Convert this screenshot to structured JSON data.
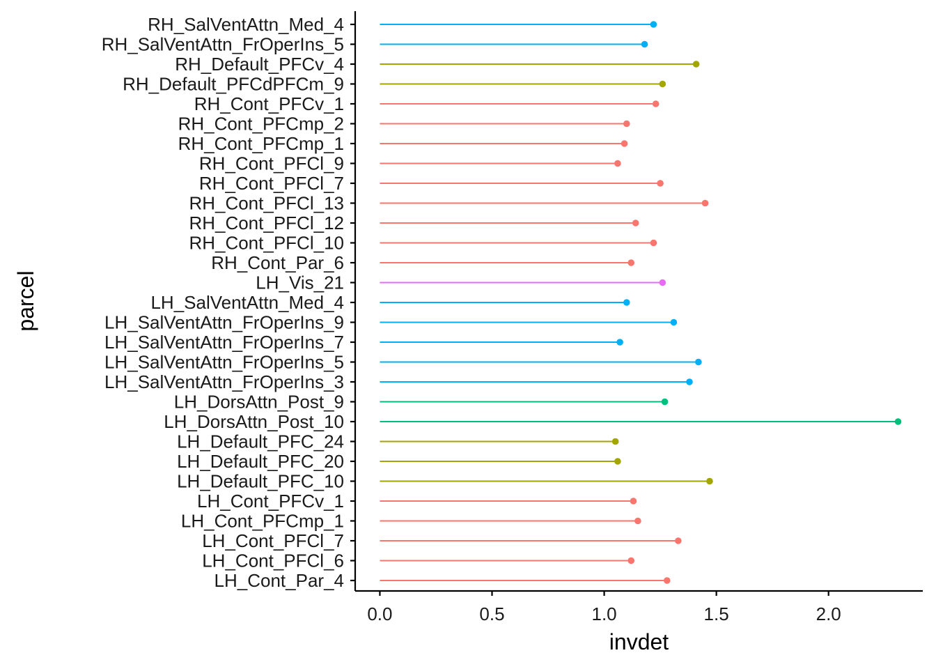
{
  "chart_data": {
    "type": "lollipop",
    "orientation": "horizontal",
    "xlabel": "invdet",
    "ylabel": "parcel",
    "xlim": [
      -0.11,
      2.42
    ],
    "xticks": [
      0.0,
      0.5,
      1.0,
      1.5,
      2.0
    ],
    "xtick_labels": [
      "0.0",
      "0.5",
      "1.0",
      "1.5",
      "2.0"
    ],
    "grid": false,
    "legend": "none",
    "network_colors": {
      "Cont": "#F8766D",
      "Default": "#A3A500",
      "DorsAttn": "#00BF7D",
      "SalVentAttn": "#00B0F6",
      "Vis": "#E76BF3"
    },
    "categories": [
      "RH_SalVentAttn_Med_4",
      "RH_SalVentAttn_FrOperIns_5",
      "RH_Default_PFCv_4",
      "RH_Default_PFCdPFCm_9",
      "RH_Cont_PFCv_1",
      "RH_Cont_PFCmp_2",
      "RH_Cont_PFCmp_1",
      "RH_Cont_PFCl_9",
      "RH_Cont_PFCl_7",
      "RH_Cont_PFCl_13",
      "RH_Cont_PFCl_12",
      "RH_Cont_PFCl_10",
      "RH_Cont_Par_6",
      "LH_Vis_21",
      "LH_SalVentAttn_Med_4",
      "LH_SalVentAttn_FrOperIns_9",
      "LH_SalVentAttn_FrOperIns_7",
      "LH_SalVentAttn_FrOperIns_5",
      "LH_SalVentAttn_FrOperIns_3",
      "LH_DorsAttn_Post_9",
      "LH_DorsAttn_Post_10",
      "LH_Default_PFC_24",
      "LH_Default_PFC_20",
      "LH_Default_PFC_10",
      "LH_Cont_PFCv_1",
      "LH_Cont_PFCmp_1",
      "LH_Cont_PFCl_7",
      "LH_Cont_PFCl_6",
      "LH_Cont_Par_4"
    ],
    "values": [
      1.22,
      1.18,
      1.41,
      1.26,
      1.23,
      1.1,
      1.09,
      1.06,
      1.25,
      1.45,
      1.14,
      1.22,
      1.12,
      1.26,
      1.1,
      1.31,
      1.07,
      1.42,
      1.38,
      1.27,
      2.31,
      1.05,
      1.06,
      1.47,
      1.13,
      1.15,
      1.33,
      1.12,
      1.28
    ],
    "networks": [
      "SalVentAttn",
      "SalVentAttn",
      "Default",
      "Default",
      "Cont",
      "Cont",
      "Cont",
      "Cont",
      "Cont",
      "Cont",
      "Cont",
      "Cont",
      "Cont",
      "Vis",
      "SalVentAttn",
      "SalVentAttn",
      "SalVentAttn",
      "SalVentAttn",
      "SalVentAttn",
      "DorsAttn",
      "DorsAttn",
      "Default",
      "Default",
      "Default",
      "Cont",
      "Cont",
      "Cont",
      "Cont",
      "Cont"
    ]
  }
}
